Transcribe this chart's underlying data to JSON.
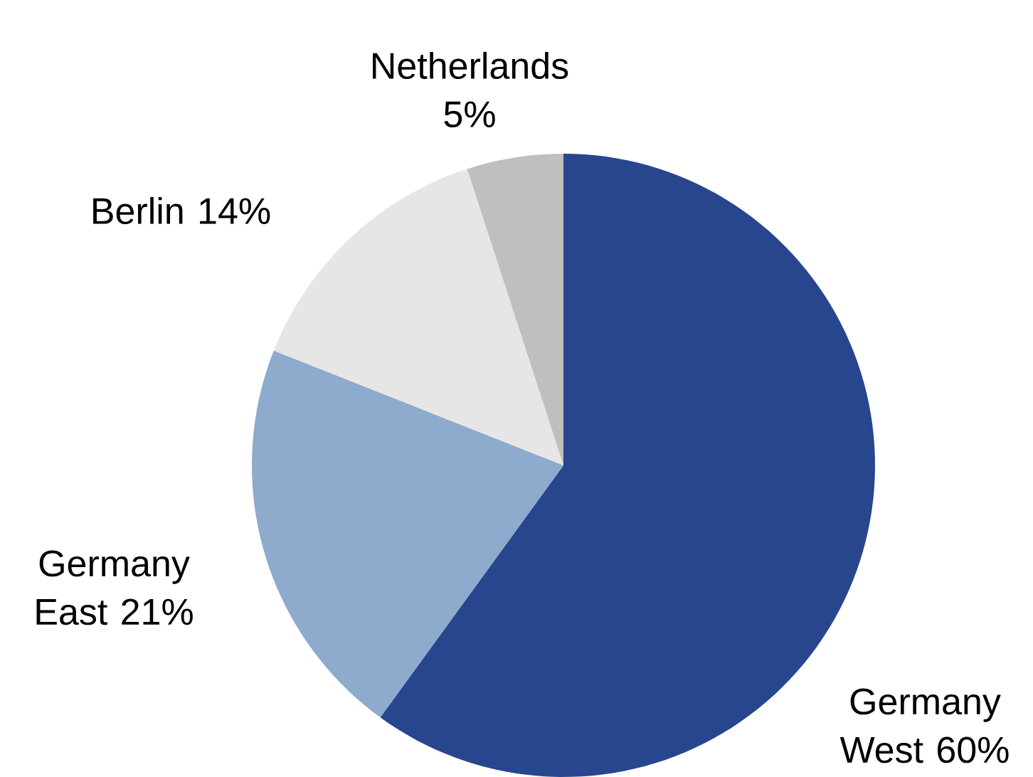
{
  "chart_data": {
    "type": "pie",
    "categories": [
      "Germany West",
      "Germany East",
      "Berlin",
      "Netherlands"
    ],
    "values": [
      60,
      21,
      14,
      5
    ],
    "value_labels": [
      "60%",
      "21%",
      "14%",
      "5%"
    ],
    "colors": [
      "#27468e",
      "#8eaacd",
      "#e6e6e6",
      "#bfbfbf"
    ]
  }
}
